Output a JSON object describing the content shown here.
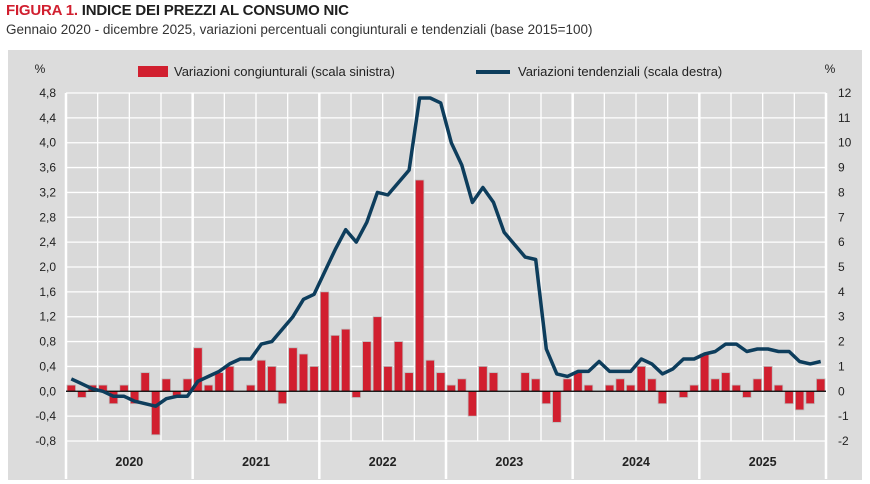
{
  "title_prefix": "FIGURA 1.",
  "title": "INDICE DEI PREZZI AL CONSUMO NIC",
  "subtitle": "Gennaio 2020 - dicembre 2025, variazioni percentuali congiunturali e tendenziali (base 2015=100)",
  "chart_data": {
    "type": "bar+line",
    "left_unit": "%",
    "right_unit": "%",
    "left_axis": {
      "range": [
        -0.8,
        4.8
      ],
      "ticks": [
        "-0,8",
        "-0,4",
        "0,0",
        "0,4",
        "0,8",
        "1,2",
        "1,6",
        "2,0",
        "2,4",
        "2,8",
        "3,2",
        "3,6",
        "4,0",
        "4,4",
        "4,8"
      ]
    },
    "right_axis": {
      "range": [
        -2,
        12
      ],
      "ticks": [
        "-2",
        "-1",
        "0",
        "1",
        "2",
        "3",
        "4",
        "5",
        "6",
        "7",
        "8",
        "9",
        "10",
        "11",
        "12"
      ]
    },
    "years": [
      "2020",
      "2021",
      "2022",
      "2023",
      "2024",
      "2025"
    ],
    "grid": true,
    "legend_position": "top",
    "series": [
      {
        "name": "Variazioni congiunturali (scala sinistra)",
        "kind": "bar",
        "axis": "left",
        "color": "#d11f2f",
        "values": [
          0.1,
          -0.1,
          0.1,
          0.1,
          -0.2,
          0.1,
          -0.2,
          0.3,
          -0.7,
          0.2,
          -0.1,
          0.2,
          0.7,
          0.1,
          0.3,
          0.4,
          0.0,
          0.1,
          0.5,
          0.4,
          -0.2,
          0.7,
          0.6,
          0.4,
          1.6,
          0.9,
          1.0,
          -0.1,
          0.8,
          1.2,
          0.4,
          0.8,
          0.3,
          3.4,
          0.5,
          0.3,
          0.1,
          0.2,
          -0.4,
          0.4,
          0.3,
          0.0,
          0.0,
          0.3,
          0.2,
          -0.2,
          -0.5,
          0.2,
          0.3,
          0.1,
          0.0,
          0.1,
          0.2,
          0.1,
          0.4,
          0.2,
          -0.2,
          0.0,
          -0.1,
          0.1,
          0.6,
          0.2,
          0.3,
          0.1,
          -0.1,
          0.2,
          0.4,
          0.1,
          -0.2,
          -0.3,
          -0.2,
          0.2
        ]
      },
      {
        "name": "Variazioni tendenziali (scala destra)",
        "kind": "line",
        "axis": "right",
        "color": "#0d3d5c",
        "values": [
          0.5,
          0.3,
          0.1,
          0.0,
          -0.2,
          -0.2,
          -0.4,
          -0.5,
          -0.6,
          -0.3,
          -0.2,
          -0.2,
          0.4,
          0.6,
          0.8,
          1.1,
          1.3,
          1.3,
          1.9,
          2.0,
          2.5,
          3.0,
          3.7,
          3.9,
          4.8,
          5.7,
          6.5,
          6.0,
          6.8,
          8.0,
          7.9,
          8.4,
          8.9,
          11.8,
          11.8,
          11.6,
          10.0,
          9.1,
          7.6,
          8.2,
          7.6,
          6.4,
          5.9,
          5.4,
          5.3,
          1.7,
          0.7,
          0.6,
          0.8,
          0.8,
          1.2,
          0.8,
          0.8,
          0.8,
          1.3,
          1.1,
          0.7,
          0.9,
          1.3,
          1.3,
          1.5,
          1.6,
          1.9,
          1.9,
          1.6,
          1.7,
          1.7,
          1.6,
          1.6,
          1.2,
          1.1,
          1.2
        ]
      }
    ]
  }
}
